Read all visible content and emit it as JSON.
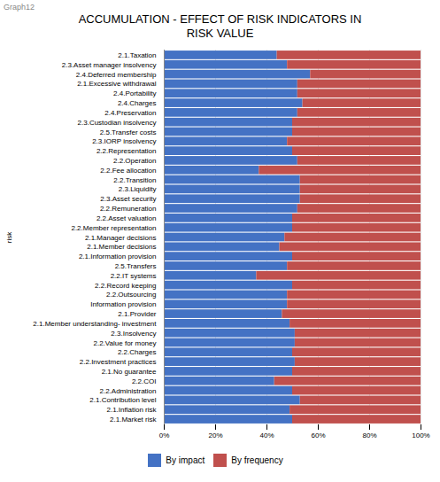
{
  "chart_data": {
    "type": "bar",
    "orientation": "horizontal",
    "stacked": true,
    "title": "ACCUMULATION - EFFECT OF RISK INDICATORS IN\nRISK VALUE",
    "annotations": [
      "Graph12"
    ],
    "ylabel": "risk",
    "categories": [
      "2.1.Taxation",
      "2.3.Asset manager insolvency",
      "2.4.Deferred membership",
      "2.1.Excessive withdrawal",
      "2.4.Portability",
      "2.4.Charges",
      "2.4.Preservation",
      "2.3.Custodian insolvency",
      "2.5.Transfer costs",
      "2.3.IORP insolvency",
      "2.2.Representation",
      "2.2.Operation",
      "2.2.Fee allocation",
      "2.2.Transition",
      "2.3.Liquidity",
      "2.3.Asset security",
      "2.2.Remuneration",
      "2.2.Asset valuation",
      "2.2.Member representation",
      "2.1.Manager decisions",
      "2.1.Member decisions",
      "2.1.Information provision",
      "2.5.Transfers",
      "2.2.IT systems",
      "2.2.Record keeping",
      "2.2.Outsourcing",
      "Information provision",
      "2.1.Provider",
      "2.1.Member understanding- investment",
      "2.3.Insolvency",
      "2.2.Value for money",
      "2.2.Charges",
      "2.2.Investment practices",
      "2.1.No guarantee",
      "2.2.COI",
      "2.2.Administration",
      "2.1.Contribution level",
      "2.1.Inflation risk",
      "2.1.Market risk"
    ],
    "series": [
      {
        "name": "By impact",
        "color": "#4472C4",
        "values": [
          44,
          48,
          57,
          52,
          52,
          54,
          52,
          50,
          50,
          48,
          50,
          52,
          37,
          53,
          53,
          53,
          52,
          50,
          50,
          47,
          45,
          50,
          48,
          36,
          50,
          48,
          48,
          46,
          49,
          51,
          51,
          50,
          51,
          50,
          43,
          50,
          53,
          49,
          50
        ]
      },
      {
        "name": "By frequency",
        "color": "#C0504D",
        "values": [
          56,
          52,
          43,
          48,
          48,
          46,
          48,
          50,
          50,
          52,
          50,
          48,
          63,
          47,
          47,
          47,
          48,
          50,
          50,
          53,
          55,
          50,
          52,
          64,
          50,
          52,
          52,
          54,
          51,
          49,
          49,
          50,
          49,
          50,
          57,
          50,
          47,
          51,
          50
        ]
      }
    ],
    "xlim": [
      0,
      100
    ],
    "xticks": [
      {
        "value": 0,
        "label": "0%"
      },
      {
        "value": 20,
        "label": "20%"
      },
      {
        "value": 40,
        "label": "40%"
      },
      {
        "value": 60,
        "label": "60%"
      },
      {
        "value": 80,
        "label": "80%"
      },
      {
        "value": 100,
        "label": "100%"
      }
    ],
    "grid": true,
    "legend": "bottom"
  }
}
